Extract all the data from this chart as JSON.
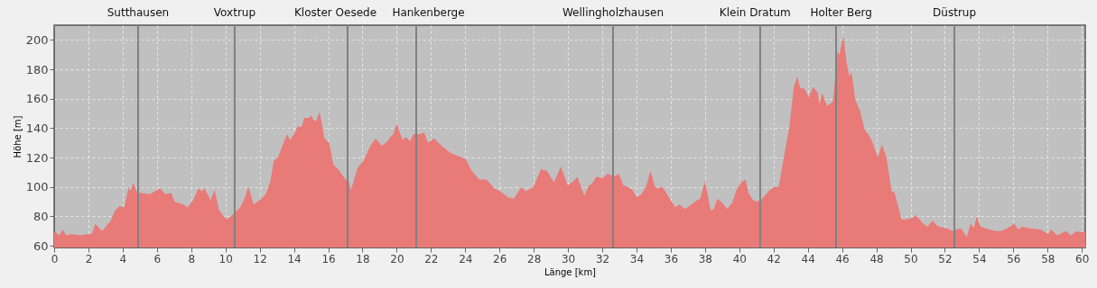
{
  "chart_data": {
    "type": "area",
    "xlabel": "Länge [km]",
    "ylabel": "Höhe [m]",
    "xlim": [
      0,
      60.2
    ],
    "ylim": [
      58.8,
      210
    ],
    "xticks": [
      0,
      2,
      4,
      6,
      8,
      10,
      12,
      14,
      16,
      18,
      20,
      22,
      24,
      26,
      28,
      30,
      32,
      34,
      36,
      38,
      40,
      42,
      44,
      46,
      48,
      50,
      52,
      54,
      56,
      58,
      60
    ],
    "yticks": [
      60,
      80,
      100,
      120,
      140,
      160,
      180,
      200
    ],
    "grid": true,
    "series": [
      {
        "color": "#e87a78",
        "x": [
          0,
          0.3,
          0.5,
          0.7,
          1.0,
          1.5,
          2.0,
          2.2,
          2.4,
          2.8,
          3.3,
          3.56,
          3.82,
          4.09,
          4.35,
          4.45,
          4.62,
          4.8,
          5.0,
          5.6,
          6.18,
          6.48,
          6.83,
          7.04,
          7.54,
          7.8,
          8.16,
          8.42,
          8.6,
          8.78,
          9.13,
          9.37,
          9.63,
          9.9,
          10.1,
          10.5,
          10.86,
          11.04,
          11.34,
          11.65,
          12.1,
          12.36,
          12.62,
          12.83,
          13.06,
          13.23,
          13.59,
          13.76,
          14.02,
          14.2,
          14.46,
          14.59,
          14.9,
          14.99,
          15.17,
          15.3,
          15.5,
          15.78,
          16.05,
          16.31,
          16.66,
          17.01,
          17.19,
          17.33,
          17.72,
          18.07,
          18.42,
          18.77,
          19.12,
          19.47,
          19.63,
          19.8,
          20.0,
          20.33,
          20.54,
          20.77,
          21.0,
          21.39,
          21.6,
          21.83,
          22.18,
          22.62,
          23.15,
          23.59,
          24.02,
          24.38,
          24.82,
          25.25,
          25.69,
          26.05,
          26.49,
          26.84,
          27.28,
          27.54,
          27.98,
          28.42,
          28.77,
          29.19,
          29.58,
          29.98,
          30.33,
          30.54,
          30.95,
          31.21,
          31.39,
          31.65,
          32.0,
          32.32,
          32.71,
          32.97,
          33.23,
          33.5,
          33.76,
          34.02,
          34.29,
          34.55,
          34.82,
          35.08,
          35.25,
          35.52,
          35.78,
          36.05,
          36.27,
          36.49,
          36.84,
          37.19,
          37.54,
          37.72,
          38.0,
          38.33,
          38.51,
          38.72,
          39.03,
          39.28,
          39.58,
          39.84,
          40.1,
          40.37,
          40.54,
          40.81,
          41.07,
          41.34,
          41.78,
          42.04,
          42.3,
          42.48,
          42.74,
          42.92,
          43.18,
          43.39,
          43.57,
          43.8,
          44.06,
          44.32,
          44.59,
          44.67,
          44.85,
          45.11,
          45.47,
          45.73,
          45.85,
          46.08,
          46.26,
          46.43,
          46.56,
          46.78,
          47.05,
          47.31,
          47.57,
          47.75,
          48.1,
          48.33,
          48.59,
          48.89,
          49.07,
          49.47,
          49.77,
          50.12,
          50.3,
          50.74,
          51.0,
          51.27,
          51.62,
          52.06,
          52.5,
          52.93,
          53.29,
          53.5,
          53.69,
          53.87,
          54.08,
          54.6,
          54.96,
          55.31,
          55.66,
          56.05,
          56.28,
          56.54,
          56.9,
          57.6,
          58.03,
          58.2,
          58.56,
          59.08,
          59.35,
          59.7,
          59.96,
          60.2
        ],
        "values": [
          70,
          67,
          71,
          67,
          68,
          67,
          68,
          68,
          75,
          70,
          77,
          84,
          87,
          86,
          100,
          97,
          103,
          97,
          96,
          95,
          99,
          95,
          96,
          90,
          88,
          86,
          92,
          99,
          97,
          99,
          91,
          98,
          84,
          80,
          78,
          82,
          86,
          90,
          100,
          88,
          92,
          95,
          104,
          118,
          120,
          125,
          136,
          132,
          136,
          141,
          141,
          147,
          147,
          149,
          145,
          145,
          151,
          133,
          130,
          115,
          111,
          105,
          104,
          98,
          113,
          118,
          127,
          133,
          128,
          131,
          134,
          136,
          143,
          132,
          134,
          131,
          136,
          136,
          137,
          130,
          133,
          128,
          123,
          121,
          119,
          111,
          105,
          105,
          99,
          97,
          93,
          92,
          100,
          97,
          100,
          112,
          111,
          103,
          114,
          101,
          104,
          107,
          94,
          101,
          102,
          107,
          106,
          109,
          107,
          109,
          101,
          100,
          98,
          93,
          95,
          100,
          111,
          100,
          99,
          100,
          95,
          90,
          86,
          88,
          85,
          88,
          91,
          92,
          104,
          84,
          85,
          92,
          89,
          85,
          89,
          98,
          103,
          105,
          96,
          91,
          90,
          92,
          98,
          100,
          100,
          112,
          129,
          140,
          168,
          175,
          167,
          167,
          161,
          168,
          164,
          156,
          164,
          155,
          158,
          192,
          190,
          203,
          185,
          175,
          178,
          159,
          152,
          139,
          135,
          131,
          120,
          129,
          120,
          97,
          96,
          78,
          78,
          79,
          81,
          75,
          73,
          77,
          73,
          72,
          70,
          72,
          66,
          75,
          72,
          80,
          73,
          71,
          70,
          70,
          72,
          75,
          71,
          73,
          72,
          71,
          68,
          71,
          67,
          70,
          67,
          70,
          69,
          70
        ]
      }
    ],
    "ref_lines": [
      {
        "axis": "x",
        "value": 4.9,
        "label": "Sutthausen",
        "color": "#808080"
      },
      {
        "axis": "x",
        "value": 10.54,
        "label": "Voxtrup",
        "color": "#808080"
      },
      {
        "axis": "x",
        "value": 17.13,
        "label": "Kloster Oesede",
        "color": "#808080"
      },
      {
        "axis": "x",
        "value": 21.14,
        "label": "Hankenberge",
        "color": "#808080"
      },
      {
        "axis": "x",
        "value": 32.63,
        "label": "Wellingholzhausen",
        "color": "#808080"
      },
      {
        "axis": "x",
        "value": 41.22,
        "label": "Klein Dratum",
        "color": "#808080"
      },
      {
        "axis": "x",
        "value": 45.65,
        "label": "Holter Berg",
        "color": "#808080"
      },
      {
        "axis": "x",
        "value": 52.56,
        "label": "Düstrup",
        "color": "#808080"
      }
    ]
  }
}
